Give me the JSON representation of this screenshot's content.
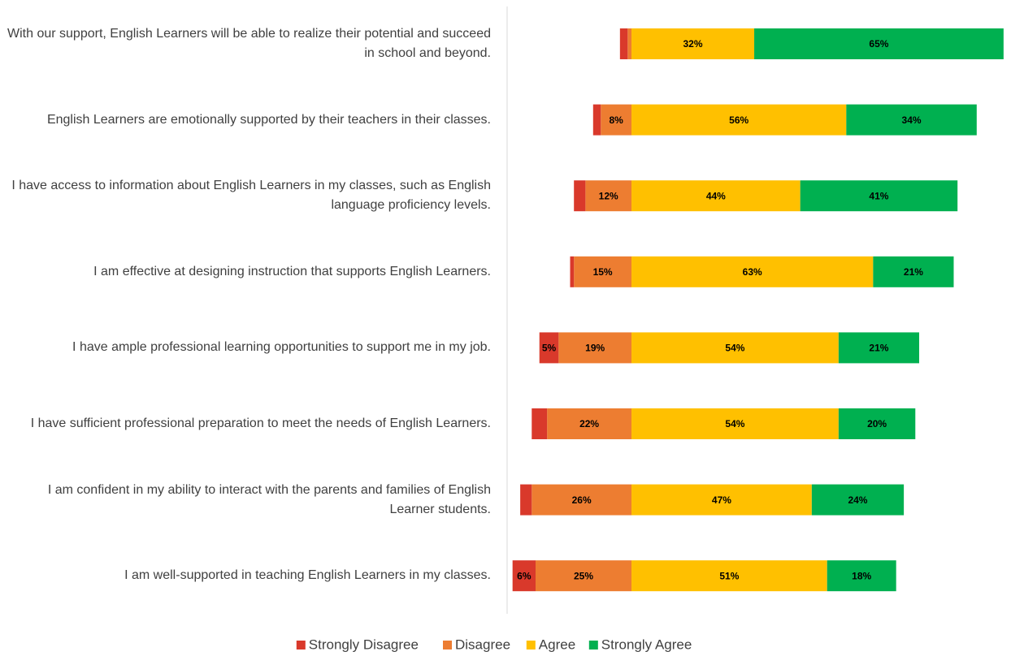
{
  "chart_data": {
    "type": "diverging_bar",
    "categories": [
      "With our support, English Learners will be able to realize their potential and succeed in school and beyond.",
      "English Learners are emotionally supported by their teachers in their classes.",
      "I have access to information about English Learners in my classes, such as English language proficiency levels.",
      "I am effective at designing instruction that supports English Learners.",
      "I have ample professional learning opportunities to support me in my job.",
      "I have sufficient professional preparation to meet the needs of English Learners.",
      "I am confident in my ability to interact with the parents and families of English Learner students.",
      "I am well-supported in teaching English Learners in my classes."
    ],
    "series": [
      {
        "name": "Strongly Disagree",
        "color": "#d9392b",
        "values": [
          2,
          2,
          3,
          1,
          5,
          4,
          3,
          6
        ],
        "value_labels": [
          null,
          null,
          null,
          null,
          "5%",
          null,
          null,
          "6%"
        ]
      },
      {
        "name": "Disagree",
        "color": "#ed7d31",
        "values": [
          1,
          8,
          12,
          15,
          19,
          22,
          26,
          25
        ],
        "value_labels": [
          null,
          "8%",
          "12%",
          "15%",
          "19%",
          "22%",
          "26%",
          "25%"
        ]
      },
      {
        "name": "Agree",
        "color": "#ffc000",
        "values": [
          32,
          56,
          44,
          63,
          54,
          54,
          47,
          51
        ],
        "value_labels": [
          "32%",
          "56%",
          "44%",
          "63%",
          "54%",
          "54%",
          "47%",
          "51%"
        ]
      },
      {
        "name": "Strongly Agree",
        "color": "#00b050",
        "values": [
          65,
          34,
          41,
          21,
          21,
          20,
          24,
          18
        ],
        "value_labels": [
          "65%",
          "34%",
          "41%",
          "21%",
          "21%",
          "20%",
          "24%",
          "18%"
        ]
      }
    ],
    "legend": "bottom"
  }
}
